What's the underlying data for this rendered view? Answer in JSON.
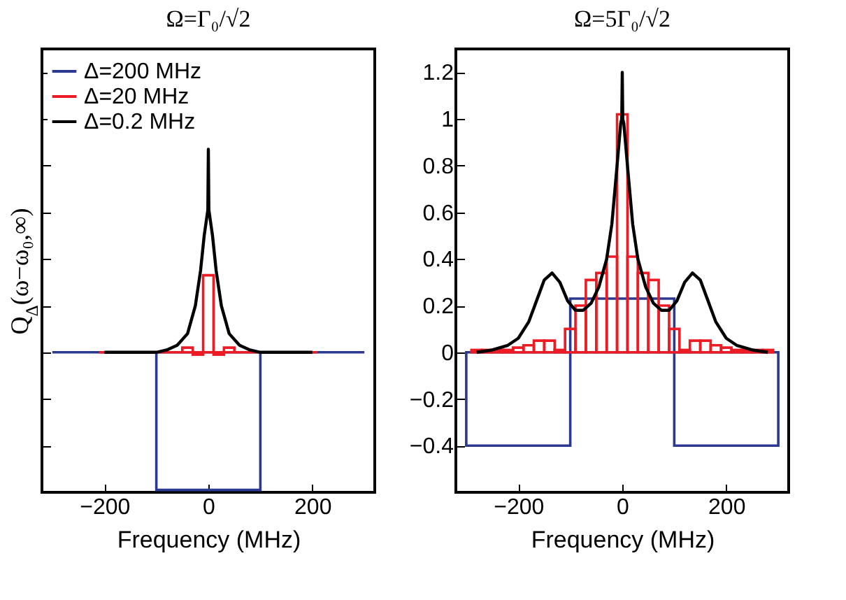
{
  "chart_data": [
    {
      "type": "line",
      "title": "Ω=Γ₀/√2",
      "xlabel": "Frequency (MHz)",
      "ylabel": "Q$_{Δ}$(ω−ω₀,∞)",
      "xlim": [
        -320,
        320
      ],
      "ylim": [
        -0.6,
        1.3
      ],
      "xticks": [
        -200,
        0,
        200
      ],
      "yticks": [
        -0.4,
        -0.2,
        0,
        0.2,
        0.4,
        0.6,
        0.8,
        1,
        1.2
      ],
      "tick_labels": "x",
      "legend": "top left",
      "grid": false,
      "series": [
        {
          "name": "Δ=200 MHz",
          "color": "#2b3990",
          "type": "histogram",
          "bins": [
            -300,
            -100,
            100,
            300
          ],
          "values": [
            0,
            -0.59,
            0
          ]
        },
        {
          "name": "Δ=20 MHz",
          "color": "#ed1c24",
          "type": "histogram",
          "bins": [
            -210,
            -190,
            -170,
            -150,
            -130,
            -110,
            -90,
            -70,
            -50,
            -30,
            -10,
            10,
            30,
            50,
            70,
            90,
            110,
            130,
            150,
            170,
            190,
            210
          ],
          "values": [
            0,
            0,
            0,
            0,
            0,
            0,
            0,
            0,
            0.02,
            -0.01,
            0.33,
            -0.01,
            0.02,
            0,
            0,
            0,
            0,
            0,
            0,
            0,
            0
          ]
        },
        {
          "name": "Δ=0.2 MHz",
          "color": "#000000",
          "type": "line",
          "x": [
            -200,
            -100,
            -80,
            -60,
            -40,
            -25,
            -15,
            -8,
            -1,
            0,
            1,
            8,
            15,
            25,
            40,
            60,
            80,
            100,
            200
          ],
          "values": [
            0,
            0,
            0.01,
            0.03,
            0.08,
            0.2,
            0.35,
            0.5,
            0.61,
            0.87,
            0.61,
            0.5,
            0.35,
            0.2,
            0.08,
            0.03,
            0.01,
            0,
            0
          ]
        }
      ]
    },
    {
      "type": "line",
      "title": "Ω=5Γ₀/√2",
      "xlabel": "Frequency (MHz)",
      "xlim": [
        -320,
        320
      ],
      "ylim": [
        -0.6,
        1.3
      ],
      "xticks": [
        -200,
        0,
        200
      ],
      "yticks": [
        -0.4,
        -0.2,
        0,
        0.2,
        0.4,
        0.6,
        0.8,
        1,
        1.2
      ],
      "grid": false,
      "series": [
        {
          "color": "#2b3990",
          "type": "histogram",
          "bins": [
            -300,
            -100,
            100,
            300
          ],
          "values": [
            -0.4,
            0.23,
            -0.4
          ]
        },
        {
          "color": "#ed1c24",
          "type": "histogram",
          "bins": [
            -290,
            -270,
            -250,
            -230,
            -210,
            -190,
            -170,
            -150,
            -130,
            -110,
            -90,
            -70,
            -50,
            -30,
            -10,
            10,
            30,
            50,
            70,
            90,
            110,
            130,
            150,
            170,
            190,
            210,
            230,
            250,
            270,
            290
          ],
          "values": [
            0.01,
            0.01,
            0.01,
            0.01,
            0.02,
            0.03,
            0.05,
            0.05,
            0.01,
            0.1,
            0.2,
            0.31,
            0.34,
            0.41,
            1.02,
            0.41,
            0.34,
            0.31,
            0.2,
            0.1,
            0.01,
            0.05,
            0.05,
            0.03,
            0.02,
            0.01,
            0.01,
            0.01,
            0.01
          ]
        },
        {
          "color": "#000000",
          "type": "line",
          "x": [
            -280,
            -250,
            -220,
            -200,
            -180,
            -165,
            -150,
            -135,
            -120,
            -105,
            -90,
            -75,
            -60,
            -45,
            -30,
            -20,
            -10,
            -3,
            -1,
            0,
            1,
            3,
            10,
            20,
            30,
            45,
            60,
            75,
            90,
            105,
            120,
            135,
            150,
            165,
            180,
            200,
            220,
            250,
            280
          ],
          "values": [
            0,
            0.01,
            0.03,
            0.06,
            0.13,
            0.22,
            0.31,
            0.34,
            0.3,
            0.22,
            0.18,
            0.18,
            0.21,
            0.28,
            0.4,
            0.55,
            0.8,
            0.98,
            1,
            1.2,
            1,
            0.98,
            0.8,
            0.55,
            0.4,
            0.28,
            0.21,
            0.18,
            0.18,
            0.22,
            0.3,
            0.34,
            0.31,
            0.22,
            0.13,
            0.06,
            0.03,
            0.01,
            0
          ]
        }
      ]
    }
  ]
}
